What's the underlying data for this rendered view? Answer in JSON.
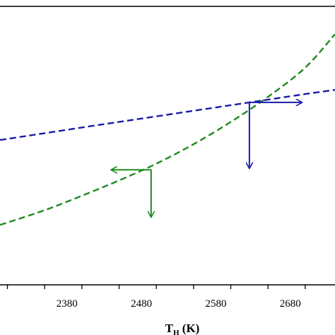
{
  "chart_data": {
    "type": "line",
    "xlabel_main": "T",
    "xlabel_sub": "H",
    "xlabel_unit": " (K)",
    "xlim": [
      2290,
      2740
    ],
    "ylim": [
      0,
      1
    ],
    "x_ticks": [
      2380,
      2480,
      2580,
      2680
    ],
    "x_tick_labels": [
      "2380",
      "2480",
      "2580",
      "2680"
    ],
    "grid": false,
    "series": [
      {
        "color": "#1a1aa8",
        "style": "dashed",
        "x": [
          2290,
          2400,
          2500,
          2600,
          2700,
          2740
        ],
        "y": [
          0.52,
          0.565,
          0.605,
          0.645,
          0.685,
          0.7
        ]
      },
      {
        "color": "#1e8a1e",
        "style": "dashed",
        "x": [
          2290,
          2350,
          2400,
          2450,
          2500,
          2550,
          2600,
          2650,
          2700,
          2740
        ],
        "y": [
          0.215,
          0.268,
          0.32,
          0.375,
          0.435,
          0.505,
          0.585,
          0.675,
          0.78,
          0.9
        ]
      }
    ],
    "annotations": [
      {
        "type": "corner-arrows",
        "color": "#1e8a1e",
        "x": 2493,
        "y": 0.413,
        "horizontal_to_x": 2440,
        "vertical_to_y": 0.245
      },
      {
        "type": "corner-arrows",
        "color": "#1a1aa8",
        "x": 2625,
        "y": 0.655,
        "horizontal_to_x": 2695,
        "vertical_to_y": 0.42
      }
    ]
  }
}
